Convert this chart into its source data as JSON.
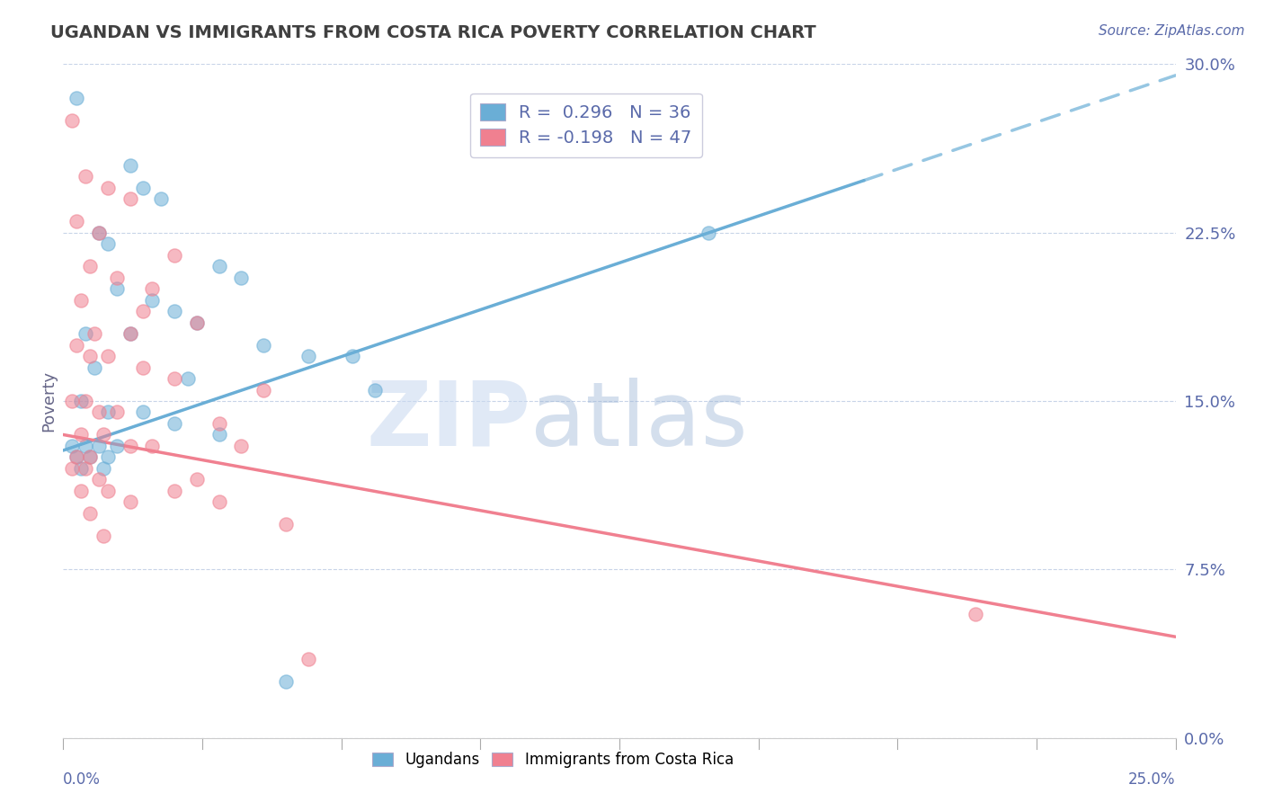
{
  "title": "UGANDAN VS IMMIGRANTS FROM COSTA RICA POVERTY CORRELATION CHART",
  "source": "Source: ZipAtlas.com",
  "ylabel": "Poverty",
  "ylabel_right_vals": [
    0.0,
    7.5,
    15.0,
    22.5,
    30.0
  ],
  "xlim": [
    0.0,
    25.0
  ],
  "ylim": [
    0.0,
    30.0
  ],
  "ugandan_color": "#6aaed6",
  "costarica_color": "#f08090",
  "ugandan_R": 0.296,
  "ugandan_N": 36,
  "costarica_R": -0.198,
  "costarica_N": 47,
  "ugandan_scatter": [
    [
      0.3,
      28.5
    ],
    [
      1.5,
      25.5
    ],
    [
      1.8,
      24.5
    ],
    [
      2.2,
      24.0
    ],
    [
      0.8,
      22.5
    ],
    [
      1.0,
      22.0
    ],
    [
      3.5,
      21.0
    ],
    [
      4.0,
      20.5
    ],
    [
      1.2,
      20.0
    ],
    [
      2.0,
      19.5
    ],
    [
      2.5,
      19.0
    ],
    [
      3.0,
      18.5
    ],
    [
      0.5,
      18.0
    ],
    [
      1.5,
      18.0
    ],
    [
      4.5,
      17.5
    ],
    [
      5.5,
      17.0
    ],
    [
      6.5,
      17.0
    ],
    [
      0.7,
      16.5
    ],
    [
      2.8,
      16.0
    ],
    [
      7.0,
      15.5
    ],
    [
      0.4,
      15.0
    ],
    [
      1.0,
      14.5
    ],
    [
      1.8,
      14.5
    ],
    [
      2.5,
      14.0
    ],
    [
      3.5,
      13.5
    ],
    [
      0.2,
      13.0
    ],
    [
      0.5,
      13.0
    ],
    [
      0.8,
      13.0
    ],
    [
      1.2,
      13.0
    ],
    [
      0.3,
      12.5
    ],
    [
      0.6,
      12.5
    ],
    [
      1.0,
      12.5
    ],
    [
      0.4,
      12.0
    ],
    [
      0.9,
      12.0
    ],
    [
      14.5,
      22.5
    ],
    [
      5.0,
      2.5
    ]
  ],
  "costarica_scatter": [
    [
      0.2,
      27.5
    ],
    [
      0.5,
      25.0
    ],
    [
      1.0,
      24.5
    ],
    [
      1.5,
      24.0
    ],
    [
      0.3,
      23.0
    ],
    [
      0.8,
      22.5
    ],
    [
      2.5,
      21.5
    ],
    [
      0.6,
      21.0
    ],
    [
      1.2,
      20.5
    ],
    [
      2.0,
      20.0
    ],
    [
      0.4,
      19.5
    ],
    [
      1.8,
      19.0
    ],
    [
      3.0,
      18.5
    ],
    [
      0.7,
      18.0
    ],
    [
      1.5,
      18.0
    ],
    [
      0.3,
      17.5
    ],
    [
      0.6,
      17.0
    ],
    [
      1.0,
      17.0
    ],
    [
      1.8,
      16.5
    ],
    [
      2.5,
      16.0
    ],
    [
      4.5,
      15.5
    ],
    [
      0.2,
      15.0
    ],
    [
      0.5,
      15.0
    ],
    [
      0.8,
      14.5
    ],
    [
      1.2,
      14.5
    ],
    [
      3.5,
      14.0
    ],
    [
      0.4,
      13.5
    ],
    [
      0.9,
      13.5
    ],
    [
      1.5,
      13.0
    ],
    [
      2.0,
      13.0
    ],
    [
      4.0,
      13.0
    ],
    [
      0.3,
      12.5
    ],
    [
      0.6,
      12.5
    ],
    [
      0.2,
      12.0
    ],
    [
      0.5,
      12.0
    ],
    [
      3.0,
      11.5
    ],
    [
      0.8,
      11.5
    ],
    [
      0.4,
      11.0
    ],
    [
      1.0,
      11.0
    ],
    [
      2.5,
      11.0
    ],
    [
      1.5,
      10.5
    ],
    [
      3.5,
      10.5
    ],
    [
      0.6,
      10.0
    ],
    [
      5.0,
      9.5
    ],
    [
      0.9,
      9.0
    ],
    [
      20.5,
      5.5
    ],
    [
      5.5,
      3.5
    ]
  ],
  "ugandan_line_x0": 0.0,
  "ugandan_line_y0": 12.8,
  "ugandan_line_x1": 25.0,
  "ugandan_line_y1": 29.5,
  "ugandan_line_solid_end_x": 18.0,
  "costarica_line_x0": 0.0,
  "costarica_line_y0": 13.5,
  "costarica_line_x1": 25.0,
  "costarica_line_y1": 4.5,
  "watermark_zip": "ZIP",
  "watermark_atlas": "atlas",
  "background_color": "#ffffff",
  "grid_color": "#c8d4e8",
  "title_color": "#404040",
  "axis_label_color": "#5a6aaa",
  "legend_box_color": "#5a6aaa"
}
